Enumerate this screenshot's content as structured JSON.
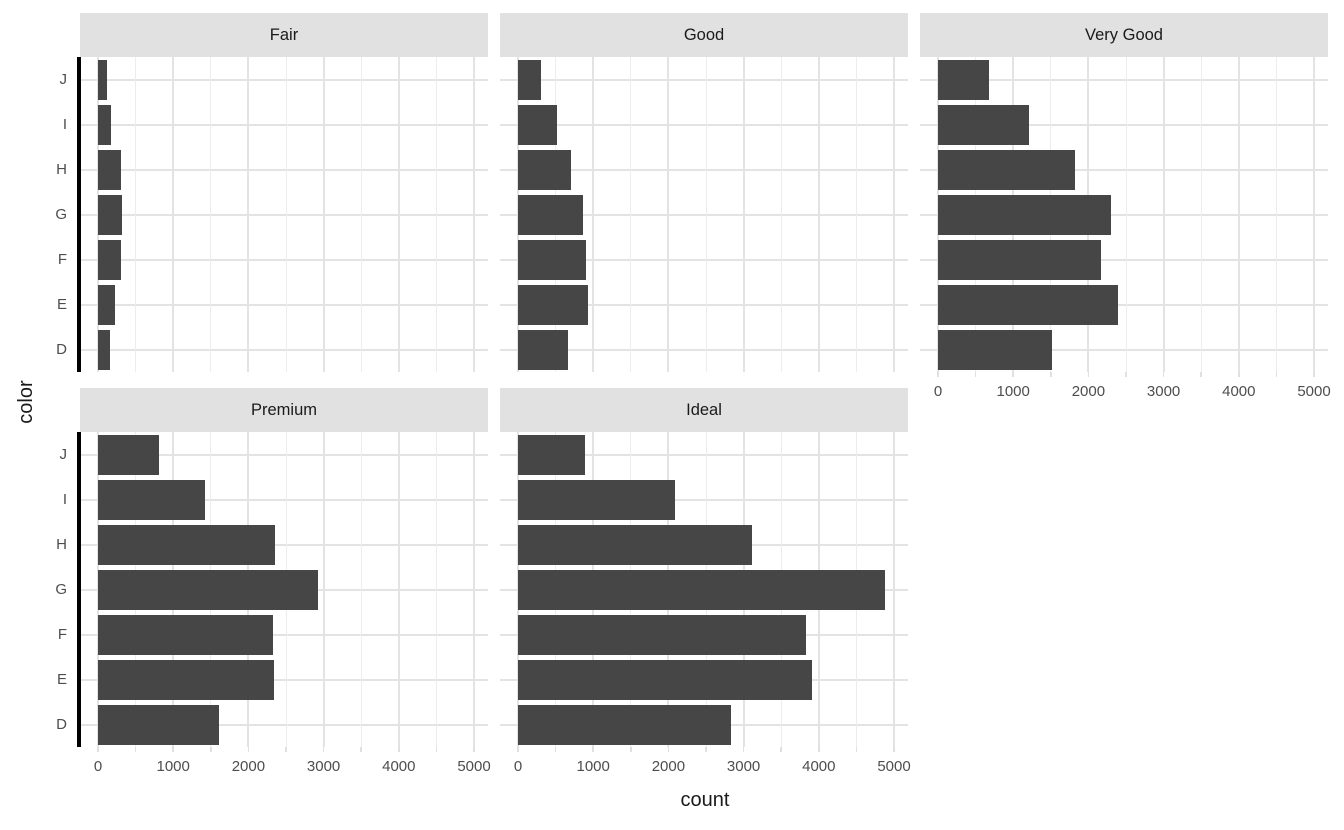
{
  "chart_data": {
    "type": "bar",
    "orientation": "horizontal",
    "title": "",
    "xlabel": "count",
    "ylabel": "color",
    "facet_by": "cut",
    "legend": "none",
    "grid": true,
    "categories_top_to_bottom": [
      "J",
      "I",
      "H",
      "G",
      "F",
      "E",
      "D"
    ],
    "x_tick_values": [
      0,
      1000,
      2000,
      3000,
      4000,
      5000
    ],
    "x_tick_labels": [
      "0",
      "1000",
      "2000",
      "3000",
      "4000",
      "5000"
    ],
    "x_minor_tick_values": [
      500,
      1500,
      2500,
      3500,
      4500
    ],
    "xlim": [
      0,
      5200
    ],
    "series": [
      {
        "name": "Fair",
        "values": [
          119,
          175,
          303,
          314,
          312,
          224,
          163
        ]
      },
      {
        "name": "Good",
        "values": [
          307,
          522,
          702,
          871,
          909,
          933,
          662
        ]
      },
      {
        "name": "Very Good",
        "values": [
          678,
          1204,
          1824,
          2299,
          2164,
          2400,
          1513
        ]
      },
      {
        "name": "Premium",
        "values": [
          808,
          1428,
          2360,
          2924,
          2331,
          2337,
          1603
        ]
      },
      {
        "name": "Ideal",
        "values": [
          896,
          2093,
          3115,
          4884,
          3826,
          3903,
          2834
        ]
      }
    ],
    "colors": {
      "bar_fill": "#464646",
      "strip_background": "#E1E1E1",
      "strip_text": "#1a1a1a",
      "grid_major": "#E3E3E3",
      "grid_minor": "#EDEDED",
      "axis_line": "#000000",
      "tick_label": "#4d4d4d",
      "axis_title": "#1a1a1a",
      "panel_background": "#ffffff"
    }
  }
}
